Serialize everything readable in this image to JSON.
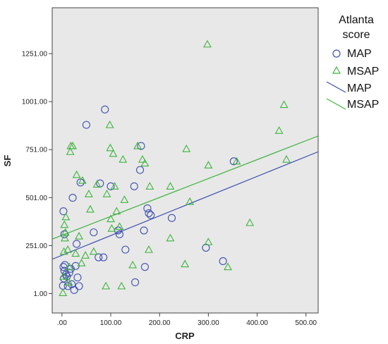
{
  "chart_data": {
    "type": "scatter",
    "title": "",
    "xlabel": "CRP",
    "ylabel": "SF",
    "xlim": [
      -20,
      525
    ],
    "ylim": [
      -100,
      1490
    ],
    "x_ticks": [
      0,
      100,
      200,
      300,
      400,
      500
    ],
    "x_tick_labels": [
      ".00",
      "100.00",
      "200.00",
      "300.00",
      "400.00",
      "500.00"
    ],
    "y_ticks": [
      1,
      251,
      501,
      751,
      1001,
      1251
    ],
    "y_tick_labels": [
      "1.00",
      "251.00",
      "501.00",
      "751.00",
      "1001.00",
      "1251.00"
    ],
    "grid": false,
    "legend": {
      "title": "Atlanta score",
      "title_lines": [
        "Atlanta",
        "score"
      ],
      "placement": "right",
      "entries": [
        "MAP",
        "MSAP",
        "MAP",
        "MSAP"
      ]
    },
    "colors": {
      "MAP": "#3f4fb0",
      "MSAP": "#3db33d",
      "plot_background": "#e8e8e8"
    },
    "series": [
      {
        "name": "MAP",
        "marker": "circle",
        "points": [
          [
            2,
            42
          ],
          [
            4,
            80
          ],
          [
            5,
            120
          ],
          [
            3,
            140
          ],
          [
            6,
            150
          ],
          [
            8,
            100
          ],
          [
            10,
            90
          ],
          [
            12,
            40
          ],
          [
            15,
            110
          ],
          [
            18,
            130
          ],
          [
            20,
            50
          ],
          [
            25,
            20
          ],
          [
            28,
            145
          ],
          [
            30,
            260
          ],
          [
            32,
            85
          ],
          [
            35,
            40
          ],
          [
            3,
            430
          ],
          [
            5,
            310
          ],
          [
            22,
            500
          ],
          [
            38,
            580
          ],
          [
            50,
            880
          ],
          [
            65,
            320
          ],
          [
            75,
            190
          ],
          [
            78,
            575
          ],
          [
            85,
            190
          ],
          [
            88,
            960
          ],
          [
            100,
            560
          ],
          [
            115,
            330
          ],
          [
            118,
            310
          ],
          [
            130,
            230
          ],
          [
            148,
            560
          ],
          [
            150,
            60
          ],
          [
            160,
            645
          ],
          [
            162,
            770
          ],
          [
            168,
            330
          ],
          [
            170,
            140
          ],
          [
            175,
            445
          ],
          [
            178,
            420
          ],
          [
            182,
            410
          ],
          [
            225,
            395
          ],
          [
            295,
            240
          ],
          [
            330,
            170
          ],
          [
            352,
            690
          ]
        ]
      },
      {
        "name": "MSAP",
        "marker": "triangle",
        "points": [
          [
            2,
            5
          ],
          [
            3,
            90
          ],
          [
            4,
            220
          ],
          [
            5,
            360
          ],
          [
            6,
            290
          ],
          [
            7,
            320
          ],
          [
            8,
            400
          ],
          [
            12,
            230
          ],
          [
            14,
            60
          ],
          [
            15,
            140
          ],
          [
            17,
            740
          ],
          [
            18,
            770
          ],
          [
            22,
            770
          ],
          [
            28,
            210
          ],
          [
            30,
            620
          ],
          [
            35,
            300
          ],
          [
            40,
            160
          ],
          [
            42,
            590
          ],
          [
            48,
            200
          ],
          [
            55,
            520
          ],
          [
            58,
            440
          ],
          [
            65,
            220
          ],
          [
            72,
            570
          ],
          [
            90,
            40
          ],
          [
            92,
            520
          ],
          [
            98,
            880
          ],
          [
            99,
            760
          ],
          [
            100,
            390
          ],
          [
            102,
            340
          ],
          [
            105,
            730
          ],
          [
            108,
            560
          ],
          [
            112,
            430
          ],
          [
            118,
            350
          ],
          [
            122,
            40
          ],
          [
            125,
            700
          ],
          [
            128,
            490
          ],
          [
            145,
            150
          ],
          [
            155,
            770
          ],
          [
            165,
            700
          ],
          [
            170,
            680
          ],
          [
            178,
            230
          ],
          [
            180,
            560
          ],
          [
            222,
            290
          ],
          [
            222,
            560
          ],
          [
            252,
            155
          ],
          [
            255,
            755
          ],
          [
            262,
            480
          ],
          [
            298,
            1300
          ],
          [
            300,
            670
          ],
          [
            300,
            270
          ],
          [
            340,
            140
          ],
          [
            358,
            690
          ],
          [
            385,
            370
          ],
          [
            445,
            850
          ],
          [
            455,
            985
          ],
          [
            460,
            700
          ]
        ]
      }
    ],
    "fit_lines": [
      {
        "name": "MAP",
        "x": [
          -20,
          525
        ],
        "y": [
          180,
          740
        ]
      },
      {
        "name": "MSAP",
        "x": [
          -20,
          525
        ],
        "y": [
          285,
          822
        ]
      }
    ]
  }
}
